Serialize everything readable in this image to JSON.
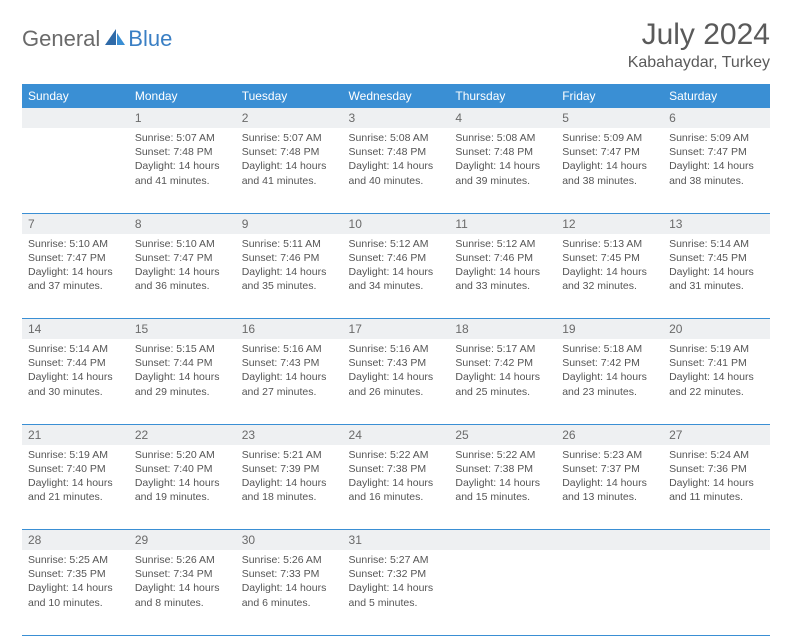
{
  "logo": {
    "part1": "General",
    "part2": "Blue"
  },
  "title": "July 2024",
  "location": "Kabahaydar, Turkey",
  "colors": {
    "header_bg": "#3a8fd4",
    "header_text": "#ffffff",
    "daynum_bg": "#eef0f2",
    "border": "#3a8fd4",
    "text": "#555555",
    "logo_gray": "#6a6a6a",
    "logo_blue": "#3a7fc4"
  },
  "weekdays": [
    "Sunday",
    "Monday",
    "Tuesday",
    "Wednesday",
    "Thursday",
    "Friday",
    "Saturday"
  ],
  "weeks": [
    {
      "nums": [
        "",
        "1",
        "2",
        "3",
        "4",
        "5",
        "6"
      ],
      "cells": [
        null,
        {
          "sunrise": "Sunrise: 5:07 AM",
          "sunset": "Sunset: 7:48 PM",
          "day1": "Daylight: 14 hours",
          "day2": "and 41 minutes."
        },
        {
          "sunrise": "Sunrise: 5:07 AM",
          "sunset": "Sunset: 7:48 PM",
          "day1": "Daylight: 14 hours",
          "day2": "and 41 minutes."
        },
        {
          "sunrise": "Sunrise: 5:08 AM",
          "sunset": "Sunset: 7:48 PM",
          "day1": "Daylight: 14 hours",
          "day2": "and 40 minutes."
        },
        {
          "sunrise": "Sunrise: 5:08 AM",
          "sunset": "Sunset: 7:48 PM",
          "day1": "Daylight: 14 hours",
          "day2": "and 39 minutes."
        },
        {
          "sunrise": "Sunrise: 5:09 AM",
          "sunset": "Sunset: 7:47 PM",
          "day1": "Daylight: 14 hours",
          "day2": "and 38 minutes."
        },
        {
          "sunrise": "Sunrise: 5:09 AM",
          "sunset": "Sunset: 7:47 PM",
          "day1": "Daylight: 14 hours",
          "day2": "and 38 minutes."
        }
      ]
    },
    {
      "nums": [
        "7",
        "8",
        "9",
        "10",
        "11",
        "12",
        "13"
      ],
      "cells": [
        {
          "sunrise": "Sunrise: 5:10 AM",
          "sunset": "Sunset: 7:47 PM",
          "day1": "Daylight: 14 hours",
          "day2": "and 37 minutes."
        },
        {
          "sunrise": "Sunrise: 5:10 AM",
          "sunset": "Sunset: 7:47 PM",
          "day1": "Daylight: 14 hours",
          "day2": "and 36 minutes."
        },
        {
          "sunrise": "Sunrise: 5:11 AM",
          "sunset": "Sunset: 7:46 PM",
          "day1": "Daylight: 14 hours",
          "day2": "and 35 minutes."
        },
        {
          "sunrise": "Sunrise: 5:12 AM",
          "sunset": "Sunset: 7:46 PM",
          "day1": "Daylight: 14 hours",
          "day2": "and 34 minutes."
        },
        {
          "sunrise": "Sunrise: 5:12 AM",
          "sunset": "Sunset: 7:46 PM",
          "day1": "Daylight: 14 hours",
          "day2": "and 33 minutes."
        },
        {
          "sunrise": "Sunrise: 5:13 AM",
          "sunset": "Sunset: 7:45 PM",
          "day1": "Daylight: 14 hours",
          "day2": "and 32 minutes."
        },
        {
          "sunrise": "Sunrise: 5:14 AM",
          "sunset": "Sunset: 7:45 PM",
          "day1": "Daylight: 14 hours",
          "day2": "and 31 minutes."
        }
      ]
    },
    {
      "nums": [
        "14",
        "15",
        "16",
        "17",
        "18",
        "19",
        "20"
      ],
      "cells": [
        {
          "sunrise": "Sunrise: 5:14 AM",
          "sunset": "Sunset: 7:44 PM",
          "day1": "Daylight: 14 hours",
          "day2": "and 30 minutes."
        },
        {
          "sunrise": "Sunrise: 5:15 AM",
          "sunset": "Sunset: 7:44 PM",
          "day1": "Daylight: 14 hours",
          "day2": "and 29 minutes."
        },
        {
          "sunrise": "Sunrise: 5:16 AM",
          "sunset": "Sunset: 7:43 PM",
          "day1": "Daylight: 14 hours",
          "day2": "and 27 minutes."
        },
        {
          "sunrise": "Sunrise: 5:16 AM",
          "sunset": "Sunset: 7:43 PM",
          "day1": "Daylight: 14 hours",
          "day2": "and 26 minutes."
        },
        {
          "sunrise": "Sunrise: 5:17 AM",
          "sunset": "Sunset: 7:42 PM",
          "day1": "Daylight: 14 hours",
          "day2": "and 25 minutes."
        },
        {
          "sunrise": "Sunrise: 5:18 AM",
          "sunset": "Sunset: 7:42 PM",
          "day1": "Daylight: 14 hours",
          "day2": "and 23 minutes."
        },
        {
          "sunrise": "Sunrise: 5:19 AM",
          "sunset": "Sunset: 7:41 PM",
          "day1": "Daylight: 14 hours",
          "day2": "and 22 minutes."
        }
      ]
    },
    {
      "nums": [
        "21",
        "22",
        "23",
        "24",
        "25",
        "26",
        "27"
      ],
      "cells": [
        {
          "sunrise": "Sunrise: 5:19 AM",
          "sunset": "Sunset: 7:40 PM",
          "day1": "Daylight: 14 hours",
          "day2": "and 21 minutes."
        },
        {
          "sunrise": "Sunrise: 5:20 AM",
          "sunset": "Sunset: 7:40 PM",
          "day1": "Daylight: 14 hours",
          "day2": "and 19 minutes."
        },
        {
          "sunrise": "Sunrise: 5:21 AM",
          "sunset": "Sunset: 7:39 PM",
          "day1": "Daylight: 14 hours",
          "day2": "and 18 minutes."
        },
        {
          "sunrise": "Sunrise: 5:22 AM",
          "sunset": "Sunset: 7:38 PM",
          "day1": "Daylight: 14 hours",
          "day2": "and 16 minutes."
        },
        {
          "sunrise": "Sunrise: 5:22 AM",
          "sunset": "Sunset: 7:38 PM",
          "day1": "Daylight: 14 hours",
          "day2": "and 15 minutes."
        },
        {
          "sunrise": "Sunrise: 5:23 AM",
          "sunset": "Sunset: 7:37 PM",
          "day1": "Daylight: 14 hours",
          "day2": "and 13 minutes."
        },
        {
          "sunrise": "Sunrise: 5:24 AM",
          "sunset": "Sunset: 7:36 PM",
          "day1": "Daylight: 14 hours",
          "day2": "and 11 minutes."
        }
      ]
    },
    {
      "nums": [
        "28",
        "29",
        "30",
        "31",
        "",
        "",
        ""
      ],
      "cells": [
        {
          "sunrise": "Sunrise: 5:25 AM",
          "sunset": "Sunset: 7:35 PM",
          "day1": "Daylight: 14 hours",
          "day2": "and 10 minutes."
        },
        {
          "sunrise": "Sunrise: 5:26 AM",
          "sunset": "Sunset: 7:34 PM",
          "day1": "Daylight: 14 hours",
          "day2": "and 8 minutes."
        },
        {
          "sunrise": "Sunrise: 5:26 AM",
          "sunset": "Sunset: 7:33 PM",
          "day1": "Daylight: 14 hours",
          "day2": "and 6 minutes."
        },
        {
          "sunrise": "Sunrise: 5:27 AM",
          "sunset": "Sunset: 7:32 PM",
          "day1": "Daylight: 14 hours",
          "day2": "and 5 minutes."
        },
        null,
        null,
        null
      ]
    }
  ]
}
